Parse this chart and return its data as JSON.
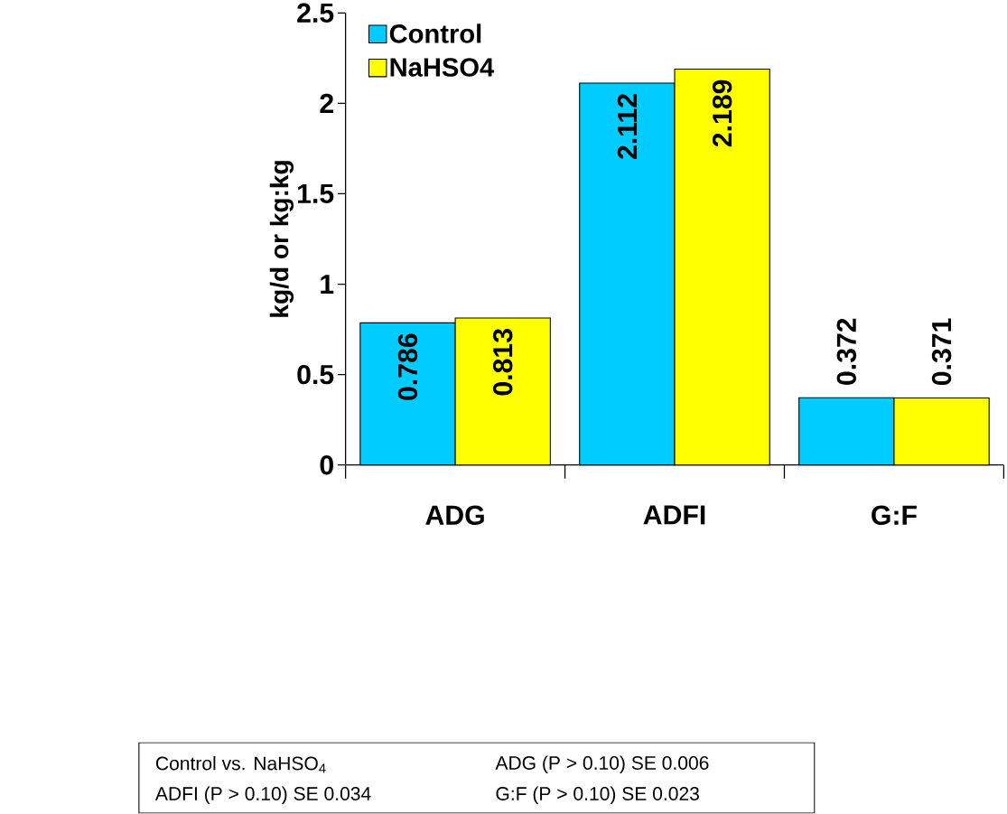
{
  "chart_data": {
    "type": "bar",
    "ylabel": "kg/d or kg:kg",
    "categories": [
      "ADG",
      "ADFI",
      "G:F"
    ],
    "series": [
      {
        "name": "Control",
        "color": "#00ccff",
        "values": [
          0.786,
          2.112,
          0.372
        ]
      },
      {
        "name": "NaHSO4",
        "color": "#ffff00",
        "values": [
          0.813,
          2.189,
          0.371
        ]
      }
    ],
    "ylim": [
      0,
      2.5
    ],
    "yticks": [
      0,
      0.5,
      1,
      1.5,
      2,
      2.5
    ],
    "data_labels": true,
    "legend": "top left",
    "annotations": [
      "Control vs. NaHSO$_{4}$",
      "ADG (P > 0.10) SE 0.006",
      "ADFI (P > 0.10) SE 0.034",
      "G:F (P > 0.10)  SE 0.023"
    ]
  }
}
